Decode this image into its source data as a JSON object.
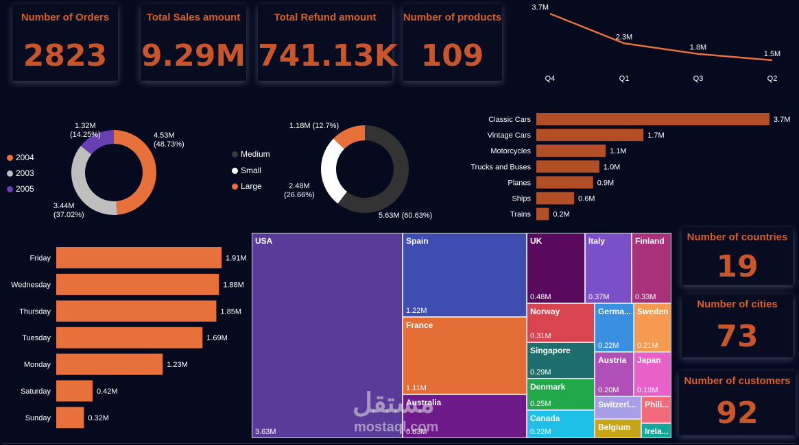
{
  "kpis": {
    "orders": {
      "title": "Number of Orders",
      "value": "2823"
    },
    "sales": {
      "title": "Total Sales amount",
      "value": "9.29M"
    },
    "refund": {
      "title": "Total Refund amount",
      "value": "741.13K"
    },
    "products": {
      "title": "Number of products",
      "value": "109"
    },
    "countries": {
      "title": "Number of countries",
      "value": "19"
    },
    "cities": {
      "title": "Number of cities",
      "value": "73"
    },
    "customers": {
      "title": "Number of customers",
      "value": "92"
    }
  },
  "watermark": {
    "arabic": "مستقل",
    "latin": "mostaql.com"
  },
  "colors": {
    "accent": "#e8703a",
    "bar": "#b24f27",
    "background": "#050a1f"
  },
  "chart_data": [
    {
      "id": "quarter-line",
      "type": "line",
      "categories": [
        "Q4",
        "Q1",
        "Q3",
        "Q2"
      ],
      "values": [
        3.7,
        2.3,
        1.8,
        1.5
      ],
      "labels": [
        "3.7M",
        "2.3M",
        "1.8M",
        "1.5M"
      ],
      "color": "#e8703a"
    },
    {
      "id": "year-donut",
      "type": "pie",
      "legend": [
        "2004",
        "2003",
        "2005"
      ],
      "legend_colors": [
        "#e8703a",
        "#bfbfbf",
        "#6a3fb0"
      ],
      "slices": [
        {
          "name": "2004",
          "value": 4.53,
          "label": "4.53M",
          "pct": "(48.73%)",
          "color": "#e8703a"
        },
        {
          "name": "2003",
          "value": 3.44,
          "label": "3.44M",
          "pct": "(37.02%)",
          "color": "#bfbfbf"
        },
        {
          "name": "2005",
          "value": 1.32,
          "label": "1.32M",
          "pct": "(14.25%)",
          "color": "#6a3fb0"
        }
      ]
    },
    {
      "id": "size-donut",
      "type": "pie",
      "legend": [
        "Medium",
        "Small",
        "Large"
      ],
      "legend_colors": [
        "#3a3a3a",
        "#ffffff",
        "#e8703a"
      ],
      "slices": [
        {
          "name": "Medium",
          "value": 5.63,
          "label": "5.63M (60.63%)",
          "color": "#333333"
        },
        {
          "name": "Small",
          "value": 2.48,
          "label": "2.48M",
          "pct": "(26.66%)",
          "color": "#ffffff"
        },
        {
          "name": "Large",
          "value": 1.18,
          "label": "1.18M (12.7%)",
          "color": "#e8703a"
        }
      ]
    },
    {
      "id": "productline-bars",
      "type": "bar",
      "orientation": "horizontal",
      "categories": [
        "Classic Cars",
        "Vintage Cars",
        "Motorcycles",
        "Trucks and Buses",
        "Planes",
        "Ships",
        "Trains"
      ],
      "values": [
        3.7,
        1.7,
        1.1,
        1.0,
        0.9,
        0.6,
        0.2
      ],
      "labels": [
        "3.7M",
        "1.7M",
        "1.1M",
        "1.0M",
        "0.9M",
        "0.6M",
        "0.2M"
      ],
      "color": "#b24f27"
    },
    {
      "id": "weekday-bars",
      "type": "bar",
      "orientation": "horizontal",
      "categories": [
        "Friday",
        "Wednesday",
        "Thursday",
        "Tuesday",
        "Monday",
        "Saturday",
        "Sunday"
      ],
      "values": [
        1.91,
        1.88,
        1.85,
        1.69,
        1.23,
        0.42,
        0.32
      ],
      "labels": [
        "1.91M",
        "1.88M",
        "1.85M",
        "1.69M",
        "1.23M",
        "0.42M",
        "0.32M"
      ],
      "color": "#e8703a"
    },
    {
      "id": "country-treemap",
      "type": "treemap",
      "items": [
        {
          "name": "USA",
          "value": 3.63,
          "label": "3.63M",
          "color": "#5b3b9a"
        },
        {
          "name": "Spain",
          "value": 1.22,
          "label": "1.22M",
          "color": "#3f4db0"
        },
        {
          "name": "France",
          "value": 1.11,
          "label": "1.11M",
          "color": "#e36d35"
        },
        {
          "name": "Australia",
          "value": 0.63,
          "label": "0.63M",
          "color": "#6e1a8a"
        },
        {
          "name": "UK",
          "value": 0.48,
          "label": "0.48M",
          "color": "#5a0a5e"
        },
        {
          "name": "Italy",
          "value": 0.37,
          "label": "0.37M",
          "color": "#7b4fc8"
        },
        {
          "name": "Finland",
          "value": 0.33,
          "label": "0.33M",
          "color": "#a8317a"
        },
        {
          "name": "Norway",
          "value": 0.31,
          "label": "0.31M",
          "color": "#d84550"
        },
        {
          "name": "Germa...",
          "value": 0.22,
          "label": "0.22M",
          "color": "#3a8fe0"
        },
        {
          "name": "Sweden",
          "value": 0.21,
          "label": "0.21M",
          "color": "#f59a4e"
        },
        {
          "name": "Singapore",
          "value": 0.29,
          "label": "0.29M",
          "color": "#1f6e6e"
        },
        {
          "name": "Austria",
          "value": 0.2,
          "label": "0.20M",
          "color": "#b04fb8"
        },
        {
          "name": "Japan",
          "value": 0.19,
          "label": "0.19M",
          "color": "#e860c8"
        },
        {
          "name": "Denmark",
          "value": 0.25,
          "label": "0.25M",
          "color": "#20a84a"
        },
        {
          "name": "Switzerl...",
          "value": 0,
          "label": "",
          "color": "#a89ee8"
        },
        {
          "name": "Phili...",
          "value": 0,
          "label": "",
          "color": "#f26b7a"
        },
        {
          "name": "Canada",
          "value": 0.22,
          "label": "0.22M",
          "color": "#1fc0e8"
        },
        {
          "name": "Belgium",
          "value": 0,
          "label": "",
          "color": "#c7a416"
        },
        {
          "name": "Irela...",
          "value": 0,
          "label": "",
          "color": "#12a89a"
        }
      ]
    }
  ]
}
